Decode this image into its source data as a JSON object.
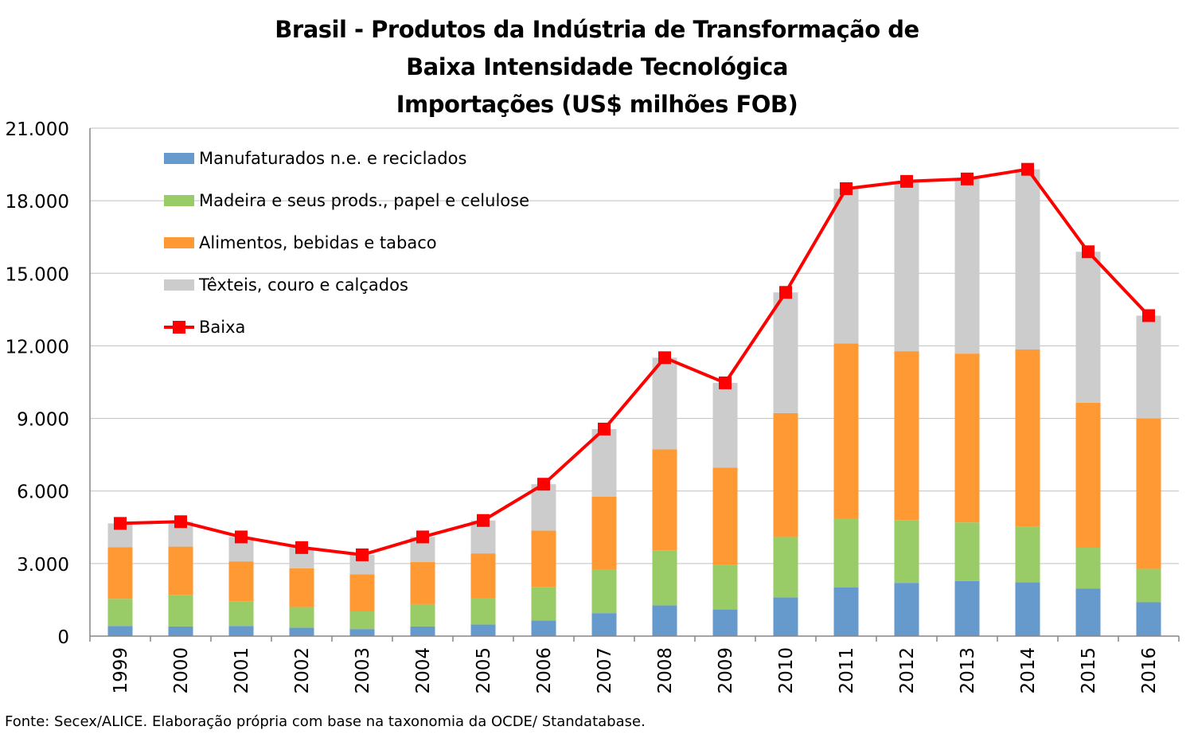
{
  "chart_data": {
    "type": "bar",
    "stacked": true,
    "title_lines": [
      "Brasil - Produtos da Indústria de Transformação de",
      "Baixa Intensidade Tecnológica",
      "Importações (US$ milhões FOB)"
    ],
    "categories": [
      "1999",
      "2000",
      "2001",
      "2002",
      "2003",
      "2004",
      "2005",
      "2006",
      "2007",
      "2008",
      "2009",
      "2010",
      "2011",
      "2012",
      "2013",
      "2014",
      "2015",
      "2016"
    ],
    "ylim": [
      0,
      21000
    ],
    "yticks": [
      0,
      3000,
      6000,
      9000,
      12000,
      15000,
      18000,
      21000
    ],
    "ytick_labels": [
      "0",
      "3.000",
      "6.000",
      "9.000",
      "12.000",
      "15.000",
      "18.000",
      "21.000"
    ],
    "grid": true,
    "legend_position": "top-left",
    "series": [
      {
        "name": "Manufaturados n.e. e reciclados",
        "color": "#6699cc",
        "values": [
          420,
          400,
          420,
          350,
          290,
          400,
          480,
          650,
          950,
          1270,
          1100,
          1600,
          2020,
          2200,
          2280,
          2230,
          1970,
          1400
        ]
      },
      {
        "name": "Madeira e seus prods., papel e celulose",
        "color": "#99cc66",
        "values": [
          1120,
          1300,
          1020,
          850,
          730,
          920,
          1100,
          1380,
          1800,
          2280,
          1850,
          2500,
          2820,
          2600,
          2420,
          2300,
          1700,
          1380
        ]
      },
      {
        "name": "Alimentos, bebidas e tabaco",
        "color": "#ff9933",
        "values": [
          2130,
          2000,
          1650,
          1600,
          1530,
          1740,
          1840,
          2330,
          3020,
          4170,
          4020,
          5120,
          7260,
          6980,
          6980,
          7320,
          5980,
          6220
        ]
      },
      {
        "name": "Têxteis, couro e calçados",
        "color": "#cccccc",
        "values": [
          990,
          1030,
          1010,
          860,
          810,
          1040,
          1360,
          1920,
          2790,
          3790,
          3500,
          4990,
          6400,
          7020,
          7220,
          7450,
          6240,
          4250
        ]
      }
    ],
    "line_series": {
      "name": "Baixa",
      "color": "#ff0000",
      "values": [
        4660,
        4730,
        4100,
        3660,
        3360,
        4100,
        4780,
        6280,
        8560,
        11510,
        10470,
        14210,
        18500,
        18800,
        18900,
        19300,
        15890,
        13250
      ]
    }
  },
  "source_note": "Fonte: Secex/ALICE. Elaboração própria com base na taxonomia da OCDE/ Standatabase."
}
